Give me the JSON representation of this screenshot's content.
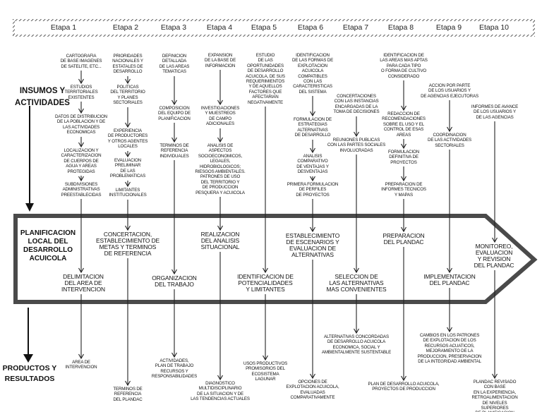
{
  "stages": [
    "Etapa 1",
    "Etapa 2",
    "Etapa 3",
    "Etapa 4",
    "Etapa 5",
    "Etapa 6",
    "Etapa 7",
    "Etapa 8",
    "Etapa 9",
    "Etapa 10"
  ],
  "side_labels": {
    "inputs": "INSUMOS Y\nACTIVIDADES",
    "band": "PLANIFICACION\nLOCAL DEL\nDESARROLLO\nACUICOLA",
    "outputs": "PRODUCTOS Y\nRESULTADOS"
  },
  "columns": [
    {
      "inputs": [
        "CARTOGRAFIA\nDE BASE IMAGENES\nDE SATELITE, ETC...",
        "ESTUDIOS\nTERRITORIALES\nEXISTENTES",
        "DATOS DE DISTRIBUCION\nDE LA POBLACION Y DE\nLAS ACTIVIDADES\nECONOMICAS",
        "LOCALIZACION Y\nCARACTERIZACION\nDE CUERPOS DE\nAGUA Y AREAS\nPROTEGIDAS",
        "SUBDIVISIONES\nADMINISTRATIVAS\nPREESTABLECIDAS"
      ],
      "process": "DELIMITACION\nDEL AREA DE\nINTERVENCION",
      "output": "AREA DE\nINTERVENCION"
    },
    {
      "inputs": [
        "PRIORIDADES\nNACIONALES Y\nESTATALES DE\nDESARROLLO",
        "POLITICAS\nDEL TERRITORIO\nY PLANES\nSECTORIALES",
        "EXPERIENCIA\nDE PRODUCTORES\nY OTROS AGENTES\nLOCALES",
        "EVALUACION\nPRELIMINAR\nDE LAS\nPROBLEMATICAS",
        "LIMITANTES\nINSTITUCIONALES"
      ],
      "process": "CONCERTACION,\nESTABLECIMIENTO DE\nMETAS Y TERMINOS\nDE REFERENCIA",
      "output": "TERMINOS DE\nREFERENCIA\nDEL PLANDAC"
    },
    {
      "inputs": [
        "DEFINICION\nDETALLADA\nDE LAS AREAS\nTEMATICAS",
        "COMPOSICION\nDEL EQUIPO DE\nPLANIFICACION",
        "TERMINOS DE\nREFERENCIA\nINDIVIDUALES"
      ],
      "process": "ORGANIZACION\nDEL TRABAJO",
      "output": "ACTIVIDADES,\nPLAN DE TRABAJO\nRECURSOS Y\nRESPONSABILIDADES"
    },
    {
      "inputs": [
        "EXPANSION\nDE LA BASE DE\nINFORMACION",
        "INVESTIGACIONES\nY MUESTREOS\nDE CAMPO\nADICIONALES",
        "ANALISIS DE\nASPECTOS\nSOCIOECONOMICOS,\nLEGALES,\nHIDROBIOLOGICOS;\nRIESGOS AMBIENTALES.\nPATRONES DE USO\nDEL TERRITORIO Y\nDE PRODUCCION\nPESQUERA Y ACUICOLA"
      ],
      "process": "REALIZACION\nDEL ANALISIS\nSITUACIONAL",
      "output": "DIAGNOSTICO\nMULTIDISCIPLINARIO\nDE LA SITUACION Y DE\nLAS TENDENCIAS ACTUALES"
    },
    {
      "inputs": [
        "ESTUDIO\nDE LAS\nOPORTUNIDADES\nDE DESARROLLO\nACUICOLA, DE SUS\nREQUERIMIENTOS\nY DE AQUELLOS\nFACTORES QUE\nAFECTARIAN\nNEGATIVAMENTE"
      ],
      "process": "IDENTIFICACION DE\nPOTENCIALIDADES\nY LIMITANTES",
      "output": "USOS PRODUCTIVOS\nPROMISORIOS DEL\nECOSISTEMA\nLAGUNAR"
    },
    {
      "inputs": [
        "IDENTIFICACION\nDE LAS FORMAS DE\nEXPLOTACION\nACUICOLA\nCOMPATIBLES\nCON LAS\nCARACTERISTICAS\nDEL SISTEMA",
        "FORMULACION DE\nESTRATEGIAS\nALTERNATIVAS\nDE DESARROLLO",
        "ANALISIS\nCOMPARATIVO\nDE VENTAJAS Y\nDESVENTAJAS",
        "PRIMERA FORMULACION\nDE PERFILES\nDE PROYECTOS"
      ],
      "process": "ESTABLECIMIENTO\nDE ESCENARIOS Y\nEVALUACION DE\nALTERNATIVAS",
      "output": "OPCIONES DE\nEXPLOTACION ACUICOLA,\nEVALUADAS\nCOMPARATIVAMENTE"
    },
    {
      "inputs": [
        "CONCERTACIONES\nCON LAS INSTANCIAS\nENCARGADAS DE LA\nTOMA DE DECISIONES",
        "REUNIONES PUBLICAS\nCON LAS PARTES SOCIALES\nINVOLUCRADAS"
      ],
      "process": "SELECCION DE\nLAS ALTERNATIVAS\nMAS CONVENIENTES",
      "output": "ALTERNATIVAS CONCORDADAS\nDE DESARROLLO ACUICOLA\nECONOMICA, SOCIAL Y\nAMBIENTALMENTE SUSTENTABLE"
    },
    {
      "inputs": [
        "IDENTIFICACION DE\nLAS AREAS MAS APTAS\nPARA CADA TIPO\nO FORMA DE CULTIVO\nCONSIDERADO",
        "REDACCION DE\nRECOMENDACIONES\nSOBRE EL USO Y EL\nCONTROL DE ESAS\nAREAS",
        "FORMULACION\nDEFINITIVA DE\nPROYECTOS",
        "PREPARACION DE\nINFORMES TECNICOS\nY MAPAS"
      ],
      "process": "PREPARACION\nDEL PLANDAC",
      "output": "PLAN DE DESARROLLO ACUICOLA,\nPROYECTOS DE PRODUCCION"
    },
    {
      "inputs": [
        "ACCION POR PARTE\nDE LOS USUARIOS Y\nDE AGENCIAS EJECUTORAS",
        "COORDINACION\nDE LAS ACTIVIDADES\nSECTORIALES"
      ],
      "process": "IMPLEMENTACION\nDEL PLANDAC",
      "output": "CAMBIOS EN LOS PATRONES\nDE EXPLOTACION DE LOS\nRECURSOS ACUATICOS,\nMEJORAMIENTO DE LA\nPRODUCCION, PRESERVACION\nDE LA INTEGRIDAD AMBIENTAL"
    },
    {
      "inputs": [
        "INFORMES DE AVANCE\nDE LOS USUARIOS Y\nDE LAS AGENCIAS"
      ],
      "process": "MONITOREO,\nEVALUACION\nY REVISION\nDEL PLANDAC",
      "output": "PLANDAC REVISADO CON BASE\nEN LA EXPERIENCIA,\nRETROALIMENTACION\nDE NIVELES SUPERIORES\nDE PLANIFICACION"
    }
  ]
}
